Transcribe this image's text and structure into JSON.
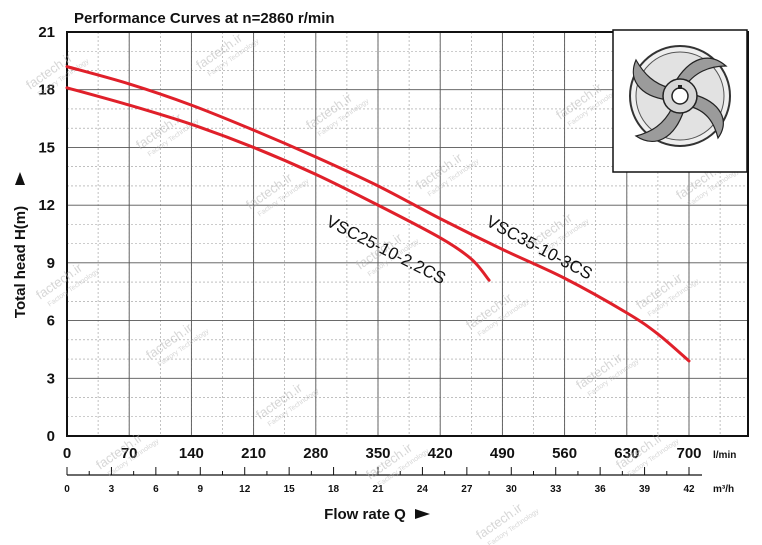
{
  "chart_data": {
    "type": "line",
    "title": "Performance Curves at n=2860 r/min",
    "ylabel": "Total head H(m)",
    "xlabel": "Flow rate Q",
    "ylim": [
      0,
      21
    ],
    "yticks": [
      0,
      3,
      6,
      9,
      12,
      15,
      18,
      21
    ],
    "xlim_lmin": [
      0,
      700
    ],
    "xticks_lmin": [
      0,
      70,
      140,
      210,
      280,
      350,
      420,
      490,
      560,
      630,
      700
    ],
    "x_unit_primary": "l/min",
    "xticks_m3h": [
      0,
      3,
      6,
      9,
      12,
      15,
      18,
      21,
      24,
      27,
      30,
      33,
      36,
      39,
      42
    ],
    "x_unit_secondary": "m³/h",
    "grid": true,
    "series": [
      {
        "name": "VSC25-10-2.2CS",
        "color": "#e0202a",
        "points": [
          [
            0,
            18.1
          ],
          [
            70,
            17.2
          ],
          [
            140,
            16.2
          ],
          [
            210,
            15.0
          ],
          [
            280,
            13.6
          ],
          [
            350,
            12.0
          ],
          [
            420,
            10.3
          ],
          [
            455,
            9.2
          ],
          [
            475,
            8.1
          ]
        ]
      },
      {
        "name": "VSC35-10-3CS",
        "color": "#e0202a",
        "points": [
          [
            0,
            19.2
          ],
          [
            70,
            18.3
          ],
          [
            140,
            17.2
          ],
          [
            210,
            15.9
          ],
          [
            280,
            14.5
          ],
          [
            350,
            13.0
          ],
          [
            420,
            11.3
          ],
          [
            490,
            9.7
          ],
          [
            560,
            8.2
          ],
          [
            630,
            6.4
          ],
          [
            665,
            5.3
          ],
          [
            700,
            3.9
          ]
        ]
      }
    ],
    "series_label_colors": "#111111"
  },
  "watermark": {
    "text": "factech.ir",
    "subtext": "Factory Technology"
  }
}
